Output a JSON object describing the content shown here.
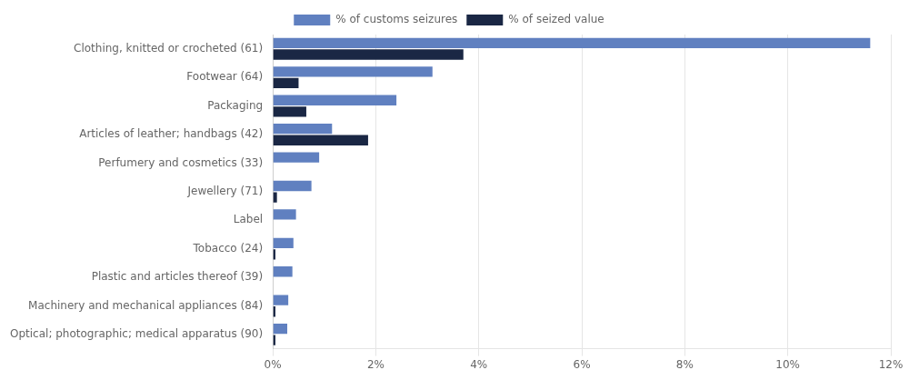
{
  "chart_data": {
    "type": "bar",
    "orientation": "horizontal",
    "categories": [
      "Clothing, knitted or crocheted (61)",
      "Footwear (64)",
      "Packaging",
      "Articles of leather; handbags (42)",
      "Perfumery and cosmetics (33)",
      "Jewellery (71)",
      "Label",
      "Tobacco (24)",
      "Plastic and articles thereof (39)",
      "Machinery and mechanical appliances (84)",
      "Optical; photographic; medical apparatus (90)"
    ],
    "series": [
      {
        "name": "% of customs seizures",
        "color": "#6080C0",
        "values": [
          0.116,
          0.031,
          0.024,
          0.0115,
          0.009,
          0.0075,
          0.0045,
          0.004,
          0.0038,
          0.003,
          0.0028
        ]
      },
      {
        "name": "% of seized value",
        "color": "#1A2744",
        "values": [
          0.037,
          0.005,
          0.0065,
          0.0185,
          0.0,
          0.0008,
          0.0,
          0.0005,
          0.0,
          0.0005,
          0.0005
        ]
      }
    ],
    "xlim": [
      0,
      0.12
    ],
    "xticks": [
      {
        "value": 0.0,
        "label": "0%"
      },
      {
        "value": 0.02,
        "label": "2%"
      },
      {
        "value": 0.04,
        "label": "4%"
      },
      {
        "value": 0.06,
        "label": "6%"
      },
      {
        "value": 0.08,
        "label": "8%"
      },
      {
        "value": 0.1,
        "label": "10%"
      },
      {
        "value": 0.12,
        "label": "12%"
      }
    ],
    "grid": true,
    "legend": "top"
  }
}
